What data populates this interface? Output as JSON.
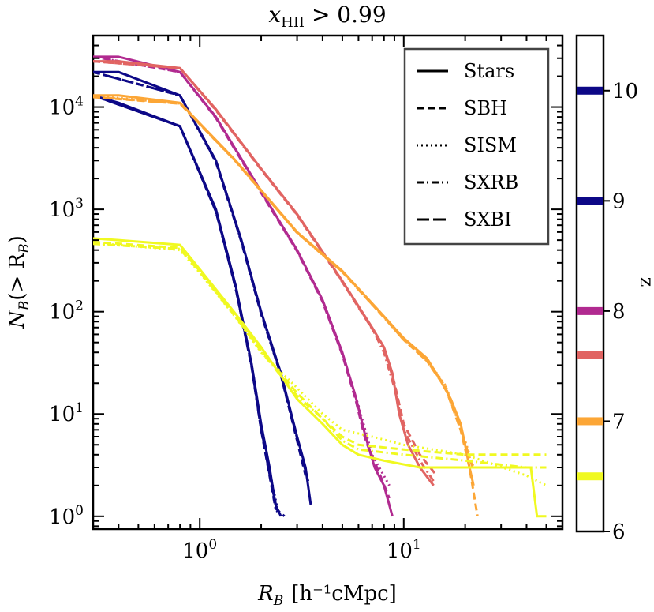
{
  "chart_data": {
    "type": "line",
    "title_base": "x",
    "title_sub": "HII",
    "title_rest": " > 0.99",
    "x_label_main": "R",
    "x_label_sub": "B",
    "x_label_units": "[h⁻¹cMpc]",
    "y_label_main": "N",
    "y_label_sub": "B",
    "y_label_rest": "(> R",
    "y_label_close": ")",
    "x_scale": "log",
    "y_scale": "log",
    "xlim": [
      0.3,
      60
    ],
    "ylim": [
      0.75,
      50000
    ],
    "x_ticks": [
      {
        "value": 1,
        "label_base": "10",
        "label_exp": "0"
      },
      {
        "value": 10,
        "label_base": "10",
        "label_exp": "1"
      }
    ],
    "y_ticks": [
      {
        "value": 1,
        "label_base": "10",
        "label_exp": "0"
      },
      {
        "value": 10,
        "label_base": "10",
        "label_exp": "1"
      },
      {
        "value": 100,
        "label_base": "10",
        "label_exp": "2"
      },
      {
        "value": 1000,
        "label_base": "10",
        "label_exp": "3"
      },
      {
        "value": 10000,
        "label_base": "10",
        "label_exp": "4"
      }
    ],
    "legend_position": "top-right",
    "legend": [
      {
        "label": "Stars",
        "style": "solid"
      },
      {
        "label": "SBH",
        "style": "dashed"
      },
      {
        "label": "SISM",
        "style": "dotted"
      },
      {
        "label": "SXRB",
        "style": "dashdot"
      },
      {
        "label": "SXBI",
        "style": "longdash"
      }
    ],
    "colorbar": {
      "label": "z",
      "range": [
        6,
        10.5
      ],
      "ticks": [
        {
          "value": 6,
          "label": "6"
        },
        {
          "value": 7,
          "label": "7"
        },
        {
          "value": 8,
          "label": "8"
        },
        {
          "value": 9,
          "label": "9"
        },
        {
          "value": 10,
          "label": "10"
        }
      ],
      "markers": [
        {
          "z": 10.0,
          "color": "#0d0887"
        },
        {
          "z": 9.0,
          "color": "#0d0887"
        },
        {
          "z": 8.0,
          "color": "#b12a90"
        },
        {
          "z": 7.6,
          "color": "#e16462"
        },
        {
          "z": 7.0,
          "color": "#fca636"
        },
        {
          "z": 6.5,
          "color": "#f0f921"
        }
      ]
    },
    "series": [
      {
        "name": "z=10 Stars",
        "z": 10,
        "color": "#0d0887",
        "style": "solid",
        "x": [
          0.3,
          0.4,
          0.8,
          1.2,
          1.5,
          1.8,
          2.0,
          2.2,
          2.35,
          2.5
        ],
        "y": [
          13000,
          11000,
          6500,
          1000,
          180,
          30,
          8,
          3,
          1.3,
          1
        ]
      },
      {
        "name": "z=10 SBH",
        "z": 10,
        "color": "#0d0887",
        "style": "dashed",
        "x": [
          0.3,
          0.8,
          1.2,
          1.5,
          1.8,
          2.0,
          2.2,
          2.35,
          2.6
        ],
        "y": [
          13000,
          6500,
          950,
          170,
          28,
          7,
          2.5,
          1.2,
          1
        ]
      },
      {
        "name": "z=10 SISM",
        "z": 10,
        "color": "#0d0887",
        "style": "dotted",
        "x": [
          0.3,
          0.8,
          1.2,
          1.5,
          1.8,
          2.0,
          2.2,
          2.4
        ],
        "y": [
          13000,
          6500,
          980,
          175,
          30,
          7.5,
          2.8,
          1.2
        ]
      },
      {
        "name": "z=10 SXRB",
        "z": 10,
        "color": "#0d0887",
        "style": "dashdot",
        "x": [
          0.3,
          0.8,
          1.2,
          1.5,
          1.8,
          2.0,
          2.2,
          2.4
        ],
        "y": [
          13000,
          6500,
          960,
          170,
          29,
          7,
          2.6,
          1.1
        ]
      },
      {
        "name": "z=10 SXBI",
        "z": 10,
        "color": "#0d0887",
        "style": "longdash",
        "x": [
          0.3,
          0.8,
          1.2,
          1.5,
          1.8,
          2.0,
          2.2,
          2.35
        ],
        "y": [
          13000,
          6500,
          970,
          172,
          29,
          7.2,
          2.7,
          1.3
        ]
      },
      {
        "name": "z=9 Stars",
        "z": 9,
        "color": "#0d0887",
        "style": "solid",
        "x": [
          0.3,
          0.4,
          0.8,
          1.2,
          1.6,
          2.0,
          2.5,
          3.0,
          3.3,
          3.5
        ],
        "y": [
          22000,
          22000,
          13000,
          3000,
          500,
          100,
          25,
          6,
          3,
          1.3
        ]
      },
      {
        "name": "z=9 SBH",
        "z": 9,
        "color": "#0d0887",
        "style": "dashed",
        "x": [
          0.3,
          0.8,
          1.2,
          1.6,
          2.0,
          2.5,
          3.0,
          3.3
        ],
        "y": [
          22000,
          13000,
          2900,
          480,
          95,
          24,
          5.5,
          2.5
        ]
      },
      {
        "name": "z=9 SXRB",
        "z": 9,
        "color": "#0d0887",
        "style": "dashdot",
        "x": [
          0.3,
          0.8,
          1.2,
          1.6,
          2.0,
          2.5,
          3.0,
          3.4
        ],
        "y": [
          22000,
          13000,
          2950,
          490,
          98,
          24,
          5.8,
          2.2
        ]
      },
      {
        "name": "z=8 Stars",
        "z": 8,
        "color": "#b12a90",
        "style": "solid",
        "x": [
          0.3,
          0.4,
          0.8,
          1.2,
          2.0,
          3.0,
          4.0,
          5.0,
          5.8,
          6.5,
          7.2,
          8.0,
          8.8
        ],
        "y": [
          31000,
          31000,
          22000,
          8000,
          1500,
          400,
          130,
          40,
          15,
          6,
          3,
          2,
          1
        ]
      },
      {
        "name": "z=8 SBH",
        "z": 8,
        "color": "#b12a90",
        "style": "dashed",
        "x": [
          0.3,
          0.8,
          1.2,
          2.0,
          3.0,
          4.0,
          5.0,
          5.8,
          6.5,
          7.5,
          8.5
        ],
        "y": [
          31000,
          22000,
          7800,
          1450,
          390,
          125,
          38,
          14,
          5.5,
          2.8,
          1.5
        ]
      },
      {
        "name": "z=8 SISM",
        "z": 8,
        "color": "#b12a90",
        "style": "dotted",
        "x": [
          0.3,
          0.8,
          1.2,
          2.0,
          3.0,
          4.0,
          5.0,
          6.0,
          7.0,
          8.5
        ],
        "y": [
          31000,
          22000,
          7900,
          1480,
          395,
          128,
          39,
          12,
          4,
          2
        ]
      },
      {
        "name": "z=7.6 Stars",
        "z": 7.6,
        "color": "#e16462",
        "style": "solid",
        "x": [
          0.3,
          0.4,
          0.8,
          1.2,
          2.0,
          3.0,
          5.0,
          7.0,
          8.0,
          8.8,
          9.5,
          10.5,
          12.0,
          14.0
        ],
        "y": [
          28000,
          28000,
          24000,
          9500,
          2500,
          900,
          200,
          70,
          45,
          25,
          10,
          5,
          3,
          2
        ]
      },
      {
        "name": "z=7.6 SBH",
        "z": 7.6,
        "color": "#e16462",
        "style": "dashed",
        "x": [
          0.3,
          0.8,
          1.2,
          2.0,
          3.0,
          5.0,
          7.0,
          8.0,
          9.0,
          10.0,
          12.0,
          14.5
        ],
        "y": [
          28000,
          24000,
          9300,
          2450,
          880,
          195,
          68,
          44,
          20,
          8,
          4,
          2.5
        ]
      },
      {
        "name": "z=7.6 SXRB",
        "z": 7.6,
        "color": "#e16462",
        "style": "dashdot",
        "x": [
          0.3,
          0.8,
          1.2,
          2.0,
          3.0,
          5.0,
          7.0,
          8.0,
          9.0,
          10.0,
          12.0,
          14.0
        ],
        "y": [
          28000,
          24000,
          9400,
          2480,
          890,
          198,
          69,
          40,
          18,
          7,
          3.5,
          2.2
        ]
      },
      {
        "name": "z=7 Stars",
        "z": 7,
        "color": "#fca636",
        "style": "solid",
        "x": [
          0.3,
          0.4,
          0.8,
          1.5,
          3.0,
          5.0,
          8.0,
          10.0,
          13.0,
          15.0,
          17.0,
          19.0,
          20.0,
          21.0,
          22.0
        ],
        "y": [
          13000,
          13000,
          11000,
          3000,
          600,
          250,
          90,
          55,
          35,
          22,
          14,
          8,
          5,
          3,
          2
        ]
      },
      {
        "name": "z=7 SBH",
        "z": 7,
        "color": "#fca636",
        "style": "dashed",
        "x": [
          0.3,
          0.8,
          1.5,
          3.0,
          5.0,
          8.0,
          10.0,
          13.0,
          16.0,
          19.0,
          21.0,
          23.0
        ],
        "y": [
          12500,
          10800,
          2950,
          590,
          245,
          88,
          53,
          33,
          18,
          7,
          3,
          1
        ]
      },
      {
        "name": "z=7 SISM",
        "z": 7,
        "color": "#fca636",
        "style": "dotted",
        "x": [
          0.3,
          0.8,
          1.5,
          3.0,
          5.0,
          8.0,
          10.0,
          13.0,
          16.0,
          19.0,
          22.0
        ],
        "y": [
          12800,
          10900,
          2980,
          595,
          248,
          89,
          54,
          34,
          19,
          7.5,
          3
        ]
      },
      {
        "name": "z=7 SXRB",
        "z": 7,
        "color": "#fca636",
        "style": "dashdot",
        "x": [
          0.3,
          0.8,
          1.5,
          3.0,
          5.0,
          8.0,
          10.0,
          13.0,
          16.0,
          19.0,
          22.0
        ],
        "y": [
          12600,
          10850,
          2960,
          592,
          246,
          88,
          53,
          33,
          18.5,
          7.2,
          2.8
        ]
      },
      {
        "name": "z=6.5 Stars",
        "z": 6.5,
        "color": "#f0f921",
        "style": "solid",
        "x": [
          0.3,
          0.4,
          0.8,
          1.0,
          1.5,
          2.0,
          3.0,
          4.0,
          5.0,
          6.0,
          8.0,
          12.0,
          20.0,
          30.0,
          42.0,
          45.0,
          50.0
        ],
        "y": [
          520,
          500,
          450,
          260,
          95,
          45,
          14,
          8,
          5,
          4,
          3.5,
          3,
          3,
          3,
          3,
          1,
          1
        ]
      },
      {
        "name": "z=6.5 SBH",
        "z": 6.5,
        "color": "#f0f921",
        "style": "dashed",
        "x": [
          0.3,
          0.8,
          1.0,
          1.5,
          2.0,
          3.0,
          4.0,
          5.0,
          6.0,
          10.0,
          20.0,
          40.0,
          50.0
        ],
        "y": [
          480,
          420,
          250,
          90,
          42,
          16,
          9,
          6,
          5,
          4.5,
          4,
          4,
          4
        ]
      },
      {
        "name": "z=6.5 SISM",
        "z": 6.5,
        "color": "#f0f921",
        "style": "dotted",
        "x": [
          0.3,
          0.8,
          1.0,
          1.5,
          2.0,
          3.0,
          4.0,
          5.0,
          7.0,
          10.0,
          20.0,
          40.0,
          50.0
        ],
        "y": [
          470,
          400,
          240,
          88,
          40,
          18,
          10,
          7,
          6,
          5,
          4,
          2.5,
          2
        ]
      },
      {
        "name": "z=6.5 SXRB",
        "z": 6.5,
        "color": "#f0f921",
        "style": "dashdot",
        "x": [
          0.3,
          0.8,
          1.0,
          1.5,
          2.0,
          3.0,
          4.0,
          5.0,
          6.0,
          10.0,
          20.0,
          40.0,
          50.0
        ],
        "y": [
          460,
          410,
          245,
          89,
          41,
          15,
          9,
          5.5,
          4.5,
          4,
          3.5,
          3,
          3
        ]
      }
    ]
  }
}
